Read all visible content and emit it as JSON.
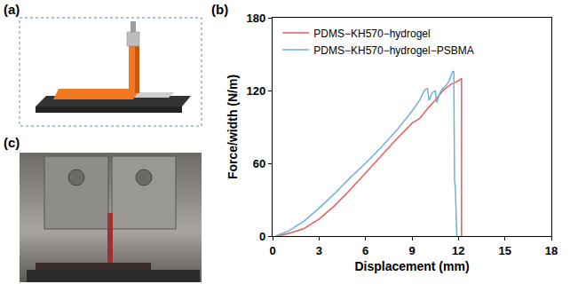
{
  "panel_labels": [
    "(a)",
    "(b)",
    "(c)"
  ],
  "chart_data": {
    "type": "line",
    "x_label": "Displacement (mm)",
    "y_label": "Force/width (N/m)",
    "xlim": [
      0,
      18
    ],
    "xticks": [
      0,
      3,
      6,
      9,
      12,
      15,
      18
    ],
    "ylim": [
      0,
      180
    ],
    "yticks": [
      0,
      60,
      120,
      180
    ],
    "grid": false,
    "legend": "upper left",
    "series": [
      {
        "name": "PDMS−KH570−hydrogel",
        "color": "#f05a5a",
        "x": [
          0.3,
          1,
          2,
          3,
          4,
          5,
          6,
          7,
          8,
          9,
          9.5,
          10,
          10.5,
          11,
          11.5,
          12,
          12.2,
          12.2
        ],
        "values": [
          0,
          2,
          6,
          14,
          25,
          38,
          52,
          66,
          80,
          93,
          97,
          105,
          112,
          120,
          125,
          128,
          130,
          0
        ]
      },
      {
        "name": "PDMS−KH570−hydrogel−PSBMA",
        "color": "#6fb0dc",
        "x": [
          0.2,
          1,
          2,
          3,
          4,
          5,
          6,
          7,
          8,
          9,
          9.5,
          9.8,
          10,
          10.1,
          10.3,
          10.5,
          10.6,
          10.8,
          11,
          11.2,
          11.4,
          11.6,
          11.7,
          11.75,
          11.8,
          11.9
        ],
        "values": [
          0,
          4,
          12,
          23,
          35,
          48,
          60,
          73,
          87,
          103,
          112,
          120,
          122,
          112,
          118,
          120,
          110,
          118,
          122,
          124,
          128,
          135,
          136,
          45,
          40,
          0
        ]
      }
    ]
  }
}
